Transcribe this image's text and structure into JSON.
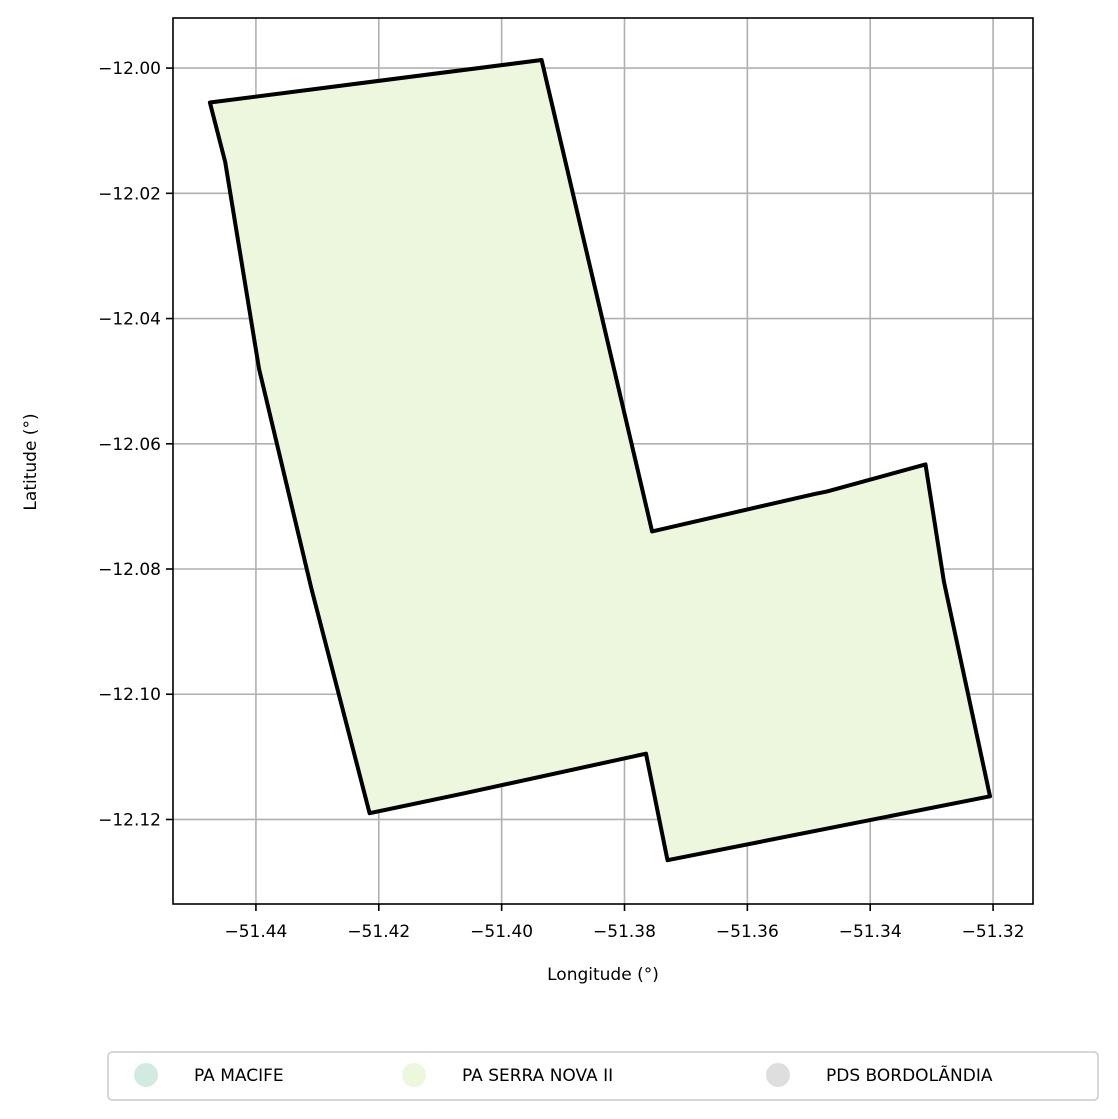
{
  "chart_data": {
    "type": "map",
    "xlabel": "Longitude (°)",
    "ylabel": "Latitude (°)",
    "xlim": [
      -51.4535,
      -51.3135
    ],
    "ylim": [
      -12.1335,
      -11.992
    ],
    "xticks": [
      -51.44,
      -51.42,
      -51.4,
      -51.38,
      -51.36,
      -51.34,
      -51.32
    ],
    "xtick_labels": [
      "−51.44",
      "−51.42",
      "−51.40",
      "−51.38",
      "−51.36",
      "−51.34",
      "−51.32"
    ],
    "yticks": [
      -12.0,
      -12.02,
      -12.04,
      -12.06,
      -12.08,
      -12.1,
      -12.12
    ],
    "ytick_labels": [
      "−12.00",
      "−12.02",
      "−12.04",
      "−12.06",
      "−12.08",
      "−12.10",
      "−12.12"
    ],
    "grid": true,
    "legend_position": "bottom",
    "legend": [
      {
        "label": "PA MACIFE",
        "color": "#d1ebe0"
      },
      {
        "label": "PA SERRA NOVA II",
        "color": "#ecf7dd"
      },
      {
        "label": "PDS BORDOLÃNDIA",
        "color": "#dedede"
      }
    ],
    "polygons": [
      {
        "name": "PA SERRA NOVA II",
        "fill": "#ecf7dd",
        "stroke": "#000000",
        "coordinates": [
          [
            -51.4475,
            -12.0055
          ],
          [
            -51.3935,
            -11.9987
          ],
          [
            -51.3755,
            -12.074
          ],
          [
            -51.349,
            -12.068
          ],
          [
            -51.347,
            -12.0676
          ],
          [
            -51.331,
            -12.0633
          ],
          [
            -51.328,
            -12.082
          ],
          [
            -51.3205,
            -12.1163
          ],
          [
            -51.373,
            -12.1265
          ],
          [
            -51.3765,
            -12.1095
          ],
          [
            -51.406,
            -12.1158
          ],
          [
            -51.4215,
            -12.119
          ],
          [
            -51.431,
            -12.083
          ],
          [
            -51.4395,
            -12.048
          ],
          [
            -51.445,
            -12.015
          ]
        ]
      }
    ]
  }
}
